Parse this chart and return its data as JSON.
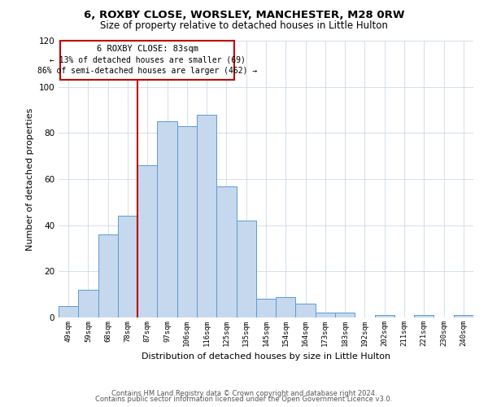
{
  "title": "6, ROXBY CLOSE, WORSLEY, MANCHESTER, M28 0RW",
  "subtitle": "Size of property relative to detached houses in Little Hulton",
  "xlabel": "Distribution of detached houses by size in Little Hulton",
  "ylabel": "Number of detached properties",
  "bar_labels": [
    "49sqm",
    "59sqm",
    "68sqm",
    "78sqm",
    "87sqm",
    "97sqm",
    "106sqm",
    "116sqm",
    "125sqm",
    "135sqm",
    "145sqm",
    "154sqm",
    "164sqm",
    "173sqm",
    "183sqm",
    "192sqm",
    "202sqm",
    "211sqm",
    "221sqm",
    "230sqm",
    "240sqm"
  ],
  "bar_values": [
    5,
    12,
    36,
    44,
    66,
    85,
    83,
    88,
    57,
    42,
    8,
    9,
    6,
    2,
    2,
    0,
    1,
    0,
    1,
    0,
    1
  ],
  "bar_color": "#c5d8ed",
  "bar_edge_color": "#5b9bd5",
  "vline_color": "#c00000",
  "annotation_title": "6 ROXBY CLOSE: 83sqm",
  "annotation_line1": "← 13% of detached houses are smaller (69)",
  "annotation_line2": "86% of semi-detached houses are larger (462) →",
  "annotation_box_color": "#c00000",
  "ylim": [
    0,
    120
  ],
  "footer1": "Contains HM Land Registry data © Crown copyright and database right 2024.",
  "footer2": "Contains public sector information licensed under the Open Government Licence v3.0."
}
